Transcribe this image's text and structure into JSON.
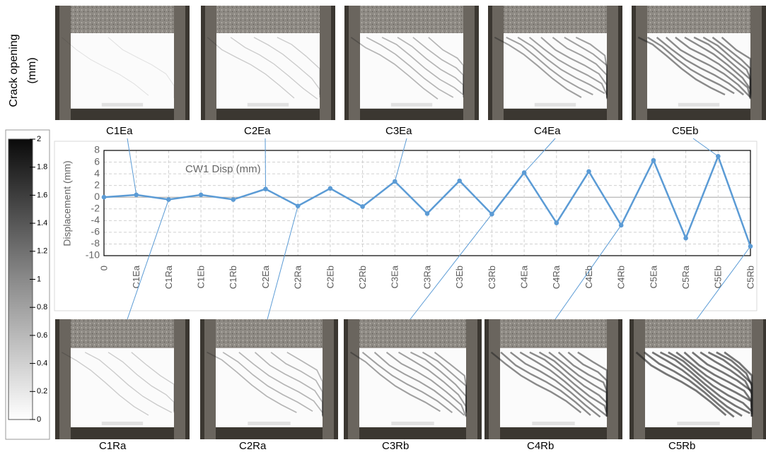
{
  "chart_data": {
    "type": "line",
    "title": "CW1 Disp (mm)",
    "y_label": "Displacement (mm)",
    "categories": [
      "0",
      "C1Ea",
      "C1Ra",
      "C1Eb",
      "C1Rb",
      "C2Ea",
      "C2Ra",
      "C2Eb",
      "C2Rb",
      "C3Ea",
      "C3Ra",
      "C3Eb",
      "C3Rb",
      "C4Ea",
      "C4Ra",
      "C4Eb",
      "C4Rb",
      "C5Ea",
      "C5Ra",
      "C5Eb",
      "C5Rb"
    ],
    "series": [
      {
        "name": "CW1 Disp (mm)",
        "color": "#5b9bd5",
        "values": [
          0,
          0.4,
          -0.4,
          0.4,
          -0.4,
          1.4,
          -1.5,
          1.5,
          -1.6,
          2.7,
          -2.8,
          2.8,
          -2.9,
          4.2,
          -4.4,
          4.4,
          -4.8,
          6.3,
          -7.0,
          7.0,
          -8.4
        ]
      }
    ],
    "ylim": [
      -10,
      8
    ],
    "yticks": [
      -10,
      -8,
      -6,
      -4,
      -2,
      0,
      2,
      4,
      6,
      8
    ],
    "grid": true
  },
  "colorbar": {
    "label": [
      "Crack opening",
      "(mm)"
    ],
    "lim": [
      0,
      2
    ],
    "ticks": [
      0,
      0.2,
      0.4,
      0.6,
      0.8,
      1,
      1.2,
      1.4,
      1.6,
      1.8,
      2
    ]
  },
  "photos": {
    "top": [
      "C1Ea",
      "C2Ea",
      "C3Ea",
      "C4Ea",
      "C5Eb"
    ],
    "bottom": [
      "C1Ra",
      "C2Ra",
      "C3Rb",
      "C4Rb",
      "C5Rb"
    ]
  }
}
